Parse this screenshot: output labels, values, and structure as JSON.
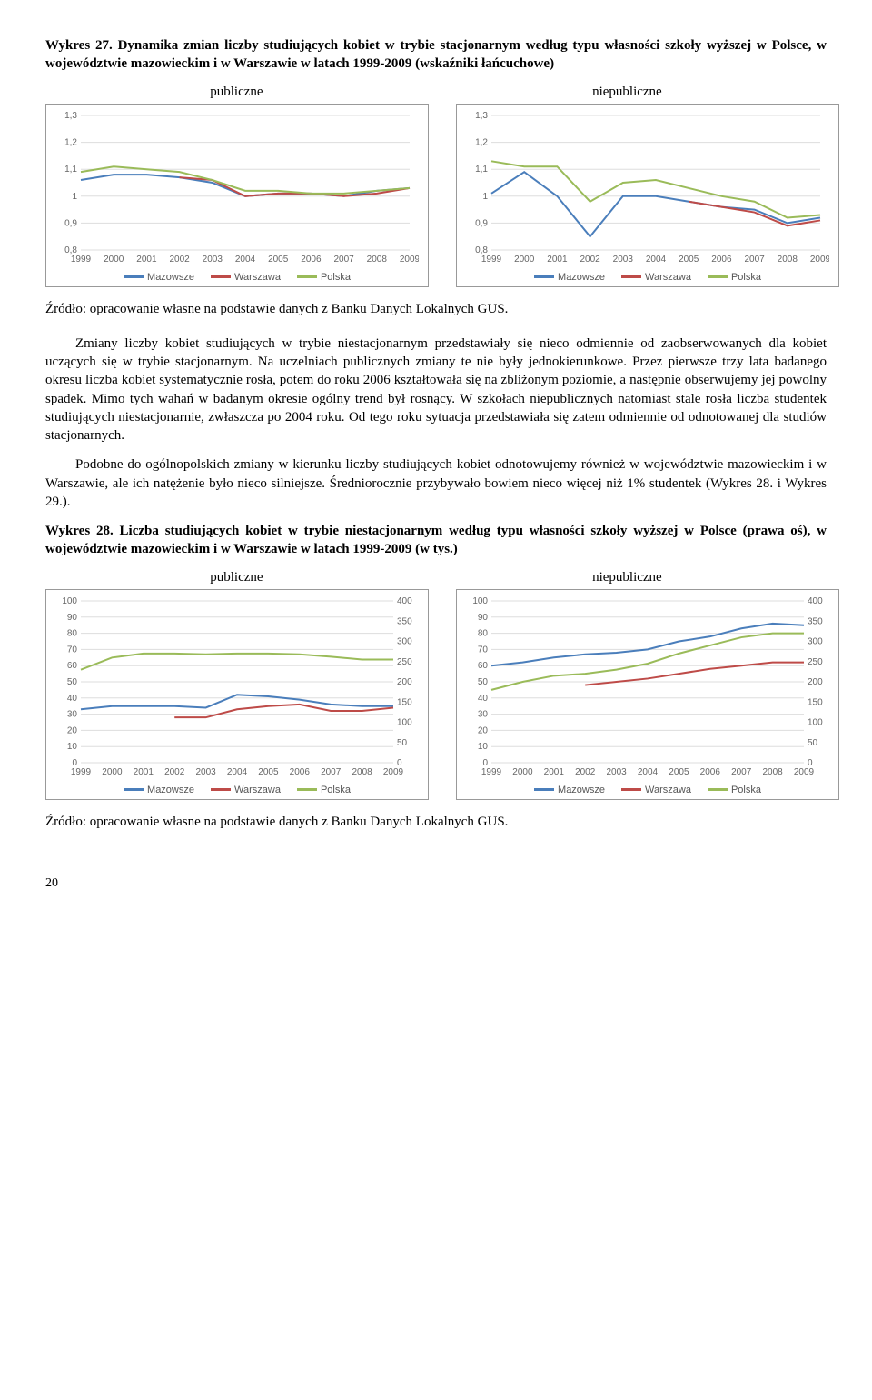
{
  "wyk27": {
    "title_prefix": "Wykres 27. ",
    "title_rest": "Dynamika zmian liczby studiujących kobiet w trybie stacjonarnym według typu własności szkoły wyższej w Polsce, w województwie mazowieckim i w Warszawie w latach 1999-2009 (wskaźniki łańcuchowe)",
    "left_label": "publiczne",
    "right_label": "niepubliczne",
    "source": "Źródło: opracowanie własne na podstawie danych z Banku Danych Lokalnych GUS.",
    "years": [
      "1999",
      "2000",
      "2001",
      "2002",
      "2003",
      "2004",
      "2005",
      "2006",
      "2007",
      "2008",
      "2009"
    ],
    "ylim": [
      0.8,
      1.3
    ],
    "yticks": [
      0.8,
      0.9,
      1.0,
      1.1,
      1.2,
      1.3
    ],
    "colors": {
      "mazowsze": "#4a7ebb",
      "warszawa": "#be4b48",
      "polska": "#9abb59"
    },
    "legend": [
      "Mazowsze",
      "Warszawa",
      "Polska"
    ],
    "pub": {
      "mazowsze": [
        1.06,
        1.08,
        1.08,
        1.07,
        1.05,
        1.0,
        1.01,
        1.01,
        1.0,
        1.02,
        1.03
      ],
      "warszawa": [
        null,
        null,
        null,
        1.07,
        1.06,
        1.0,
        1.01,
        1.01,
        1.0,
        1.01,
        1.03
      ],
      "polska": [
        1.09,
        1.11,
        1.1,
        1.09,
        1.06,
        1.02,
        1.02,
        1.01,
        1.01,
        1.02,
        1.03
      ]
    },
    "npub": {
      "mazowsze": [
        1.01,
        1.09,
        1.0,
        0.85,
        1.0,
        1.0,
        0.98,
        0.96,
        0.95,
        0.9,
        0.92
      ],
      "warszawa": [
        null,
        null,
        null,
        null,
        null,
        null,
        0.98,
        0.96,
        0.94,
        0.89,
        0.91
      ],
      "polska": [
        1.13,
        1.11,
        1.11,
        0.98,
        1.05,
        1.06,
        1.03,
        1.0,
        0.98,
        0.92,
        0.93
      ]
    }
  },
  "para1": "Zmiany liczby kobiet studiujących w trybie niestacjonarnym przedstawiały się nieco odmiennie od zaobserwowanych dla kobiet uczących się w trybie stacjonarnym. Na uczelniach publicznych zmiany te nie były jednokierunkowe. Przez pierwsze trzy lata badanego okresu liczba kobiet systematycznie rosła, potem do roku 2006 kształtowała się na zbliżonym poziomie, a następnie obserwujemy jej powolny spadek. Mimo tych wahań w badanym okresie ogólny trend był rosnący. W szkołach niepublicznych natomiast stale rosła liczba studentek studiujących niestacjonarnie, zwłaszcza po 2004 roku. Od tego roku sytuacja przedstawiała się zatem odmiennie od odnotowanej dla studiów stacjonarnych.",
  "para2": "Podobne do ogólnopolskich zmiany w kierunku liczby studiujących kobiet odnotowujemy również w województwie mazowieckim i w Warszawie, ale ich natężenie było nieco silniejsze. Średniorocznie przybywało bowiem nieco więcej niż 1% studentek (Wykres 28. i Wykres 29.).",
  "wyk28": {
    "title_prefix": "Wykres 28. ",
    "title_rest": "Liczba studiujących kobiet w trybie niestacjonarnym według typu własności szkoły wyższej w Polsce (prawa oś), w województwie mazowieckim i w Warszawie w latach 1999-2009 (w tys.)",
    "left_label": "publiczne",
    "right_label": "niepubliczne",
    "source": "Źródło: opracowanie własne na podstawie danych z Banku Danych Lokalnych GUS.",
    "years": [
      "1999",
      "2000",
      "2001",
      "2002",
      "2003",
      "2004",
      "2005",
      "2006",
      "2007",
      "2008",
      "2009"
    ],
    "ylimL": [
      0,
      100
    ],
    "ylimR": [
      0,
      400
    ],
    "yticksL": [
      0,
      10,
      20,
      30,
      40,
      50,
      60,
      70,
      80,
      90,
      100
    ],
    "yticksR": [
      0,
      50,
      100,
      150,
      200,
      250,
      300,
      350,
      400
    ],
    "colors": {
      "mazowsze": "#4a7ebb",
      "warszawa": "#be4b48",
      "polska": "#9abb59"
    },
    "legend": [
      "Mazowsze",
      "Warszawa",
      "Polska"
    ],
    "pub": {
      "mazowsze": [
        33,
        35,
        35,
        35,
        34,
        42,
        41,
        39,
        36,
        35,
        35
      ],
      "warszawa": [
        null,
        null,
        null,
        28,
        28,
        33,
        35,
        36,
        32,
        32,
        34
      ],
      "polska": [
        230,
        260,
        270,
        270,
        268,
        270,
        270,
        268,
        262,
        255,
        255
      ]
    },
    "npub": {
      "mazowsze": [
        60,
        62,
        65,
        67,
        68,
        70,
        75,
        78,
        83,
        86,
        85
      ],
      "warszawa": [
        null,
        null,
        null,
        48,
        50,
        52,
        55,
        58,
        60,
        62,
        62
      ],
      "polska": [
        180,
        200,
        215,
        220,
        230,
        245,
        270,
        290,
        310,
        320,
        320
      ]
    }
  },
  "pagenum": "20"
}
